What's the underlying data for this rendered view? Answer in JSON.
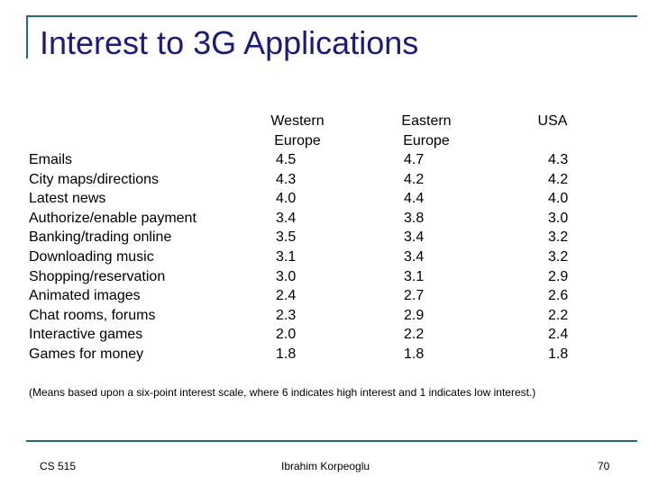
{
  "title": "Interest to 3G Applications",
  "columns": [
    {
      "line1": "Western",
      "line2": "Europe"
    },
    {
      "line1": "Eastern",
      "line2": "Europe"
    },
    {
      "line1": "USA",
      "line2": ""
    }
  ],
  "rows": [
    {
      "label": "Emails",
      "values": [
        "4.5",
        "4.7",
        "4.3"
      ]
    },
    {
      "label": "City maps/directions",
      "values": [
        "4.3",
        "4.2",
        "4.2"
      ]
    },
    {
      "label": "Latest news",
      "values": [
        "4.0",
        "4.4",
        "4.0"
      ]
    },
    {
      "label": "Authorize/enable payment",
      "values": [
        "3.4",
        "3.8",
        "3.0"
      ]
    },
    {
      "label": "Banking/trading online",
      "values": [
        "3.5",
        "3.4",
        "3.2"
      ]
    },
    {
      "label": "Downloading music",
      "values": [
        "3.1",
        "3.4",
        "3.2"
      ]
    },
    {
      "label": "Shopping/reservation",
      "values": [
        "3.0",
        "3.1",
        "2.9"
      ]
    },
    {
      "label": "Animated images",
      "values": [
        "2.4",
        "2.7",
        "2.6"
      ]
    },
    {
      "label": "Chat rooms, forums",
      "values": [
        "2.3",
        "2.9",
        "2.2"
      ]
    },
    {
      "label": "Interactive games",
      "values": [
        "2.0",
        "2.2",
        "2.4"
      ]
    },
    {
      "label": "Games for money",
      "values": [
        "1.8",
        "1.8",
        "1.8"
      ]
    }
  ],
  "footnote": "(Means based upon a six-point interest scale,  where 6 indicates high interest and 1 indicates low interest.)",
  "footer": {
    "course": "CS 515",
    "author": "Ibrahim Korpeoglu",
    "page_number": "70"
  }
}
